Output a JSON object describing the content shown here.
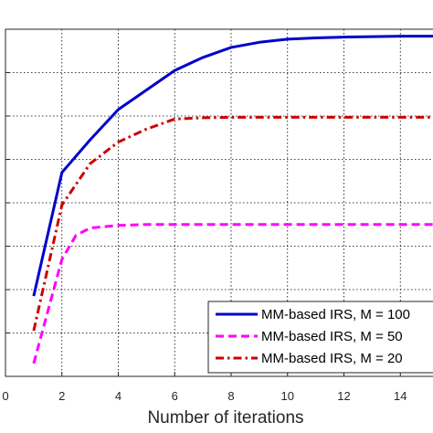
{
  "chart_data": {
    "type": "line",
    "title": "",
    "xlabel": "Number of iterations",
    "ylabel": "",
    "xlim": [
      0,
      16
    ],
    "ylim": [
      0,
      8
    ],
    "grid": true,
    "legend_position": "bottom-right",
    "x_ticks": [
      {
        "value": 0,
        "label": "0"
      },
      {
        "value": 2,
        "label": "2"
      },
      {
        "value": 4,
        "label": "4"
      },
      {
        "value": 6,
        "label": "6"
      },
      {
        "value": 8,
        "label": "8"
      },
      {
        "value": 10,
        "label": "10"
      },
      {
        "value": 12,
        "label": "12"
      },
      {
        "value": 14,
        "label": "14"
      }
    ],
    "y_gridlines": [
      1,
      2,
      3,
      4,
      5,
      6,
      7
    ],
    "series": [
      {
        "name": "MM-based IRS, M = 100",
        "color": "#0000cc",
        "dash": "solid",
        "x": [
          1,
          2,
          3,
          4,
          5,
          6,
          7,
          8,
          9,
          10,
          11,
          12,
          13,
          14,
          15,
          16
        ],
        "y": [
          1.85,
          4.7,
          5.45,
          6.15,
          6.6,
          7.05,
          7.35,
          7.58,
          7.7,
          7.77,
          7.8,
          7.82,
          7.83,
          7.84,
          7.84,
          7.84
        ]
      },
      {
        "name": "MM-based IRS, M = 50",
        "color": "#ff00ff",
        "dash": "dashed",
        "x": [
          1,
          2,
          2.5,
          3,
          4,
          5,
          6,
          7,
          8,
          9,
          10,
          11,
          12,
          13,
          14,
          15,
          16
        ],
        "y": [
          0.3,
          2.7,
          3.25,
          3.42,
          3.48,
          3.5,
          3.5,
          3.5,
          3.5,
          3.5,
          3.5,
          3.5,
          3.5,
          3.5,
          3.5,
          3.5,
          3.5
        ]
      },
      {
        "name": "MM-based IRS, M = 20",
        "color": "#cc0000",
        "dash": "dashdot",
        "x": [
          1,
          2,
          3,
          4,
          5,
          6,
          7,
          8,
          9,
          10,
          11,
          12,
          13,
          14,
          15,
          16
        ],
        "y": [
          1.05,
          3.95,
          4.9,
          5.4,
          5.7,
          5.93,
          5.96,
          5.97,
          5.97,
          5.97,
          5.97,
          5.97,
          5.97,
          5.97,
          5.97,
          5.97
        ]
      }
    ]
  }
}
